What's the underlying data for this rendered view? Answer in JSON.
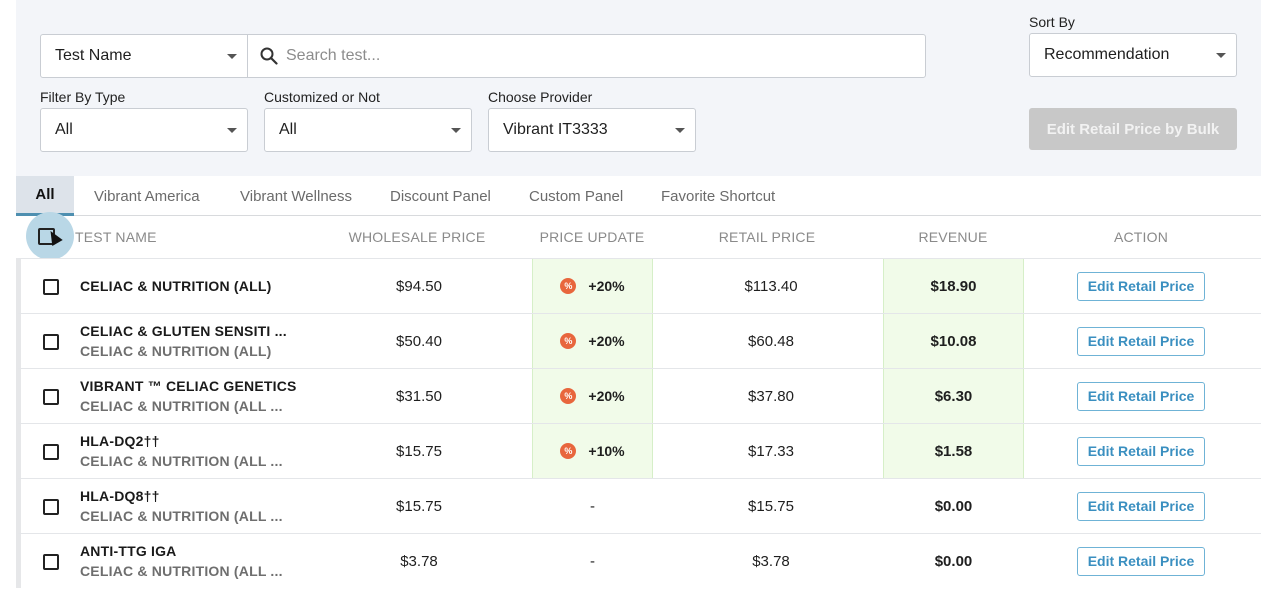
{
  "search": {
    "field_select": "Test Name",
    "placeholder": "Search test..."
  },
  "sort": {
    "label": "Sort By",
    "value": "Recommendation"
  },
  "filters": {
    "type_label": "Filter By Type",
    "type_value": "All",
    "custom_label": "Customized or Not",
    "custom_value": "All",
    "provider_label": "Choose Provider",
    "provider_value": "Vibrant IT3333"
  },
  "bulk_button": "Edit Retail Price by Bulk",
  "tabs": [
    "All",
    "Vibrant America",
    "Vibrant Wellness",
    "Discount Panel",
    "Custom Panel",
    "Favorite Shortcut"
  ],
  "columns": {
    "name": "TEST NAME",
    "wholesale": "WHOLESALE PRICE",
    "update": "PRICE UPDATE",
    "retail": "RETAIL PRICE",
    "revenue": "REVENUE",
    "action": "ACTION"
  },
  "rows": [
    {
      "name": "CELIAC & NUTRITION (ALL)",
      "sub": "",
      "wholesale": "$94.50",
      "update": "+20%",
      "retail": "$113.40",
      "revenue": "$18.90",
      "action": "Edit Retail Price"
    },
    {
      "name": "CELIAC & GLUTEN SENSITI ...",
      "sub": "CELIAC & NUTRITION (ALL)",
      "wholesale": "$50.40",
      "update": "+20%",
      "retail": "$60.48",
      "revenue": "$10.08",
      "action": "Edit Retail Price"
    },
    {
      "name": "VIBRANT ™ CELIAC GENETICS",
      "sub": "CELIAC & NUTRITION (ALL ...",
      "wholesale": "$31.50",
      "update": "+20%",
      "retail": "$37.80",
      "revenue": "$6.30",
      "action": "Edit Retail Price"
    },
    {
      "name": "HLA-DQ2††",
      "sub": "CELIAC & NUTRITION (ALL ...",
      "wholesale": "$15.75",
      "update": "+10%",
      "retail": "$17.33",
      "revenue": "$1.58",
      "action": "Edit Retail Price"
    },
    {
      "name": "HLA-DQ8††",
      "sub": "CELIAC & NUTRITION (ALL ...",
      "wholesale": "$15.75",
      "update": "-",
      "retail": "$15.75",
      "revenue": "$0.00",
      "action": "Edit Retail Price"
    },
    {
      "name": "ANTI-TTG IGA",
      "sub": "CELIAC & NUTRITION (ALL ...",
      "wholesale": "$3.78",
      "update": "-",
      "retail": "$3.78",
      "revenue": "$0.00",
      "action": "Edit Retail Price"
    }
  ],
  "badge_glyph": "%",
  "colors": {
    "accent": "#3a8fc0",
    "badge": "#e8663d",
    "highlight": "#f1fbe9",
    "disabled": "#c8c8c8"
  }
}
